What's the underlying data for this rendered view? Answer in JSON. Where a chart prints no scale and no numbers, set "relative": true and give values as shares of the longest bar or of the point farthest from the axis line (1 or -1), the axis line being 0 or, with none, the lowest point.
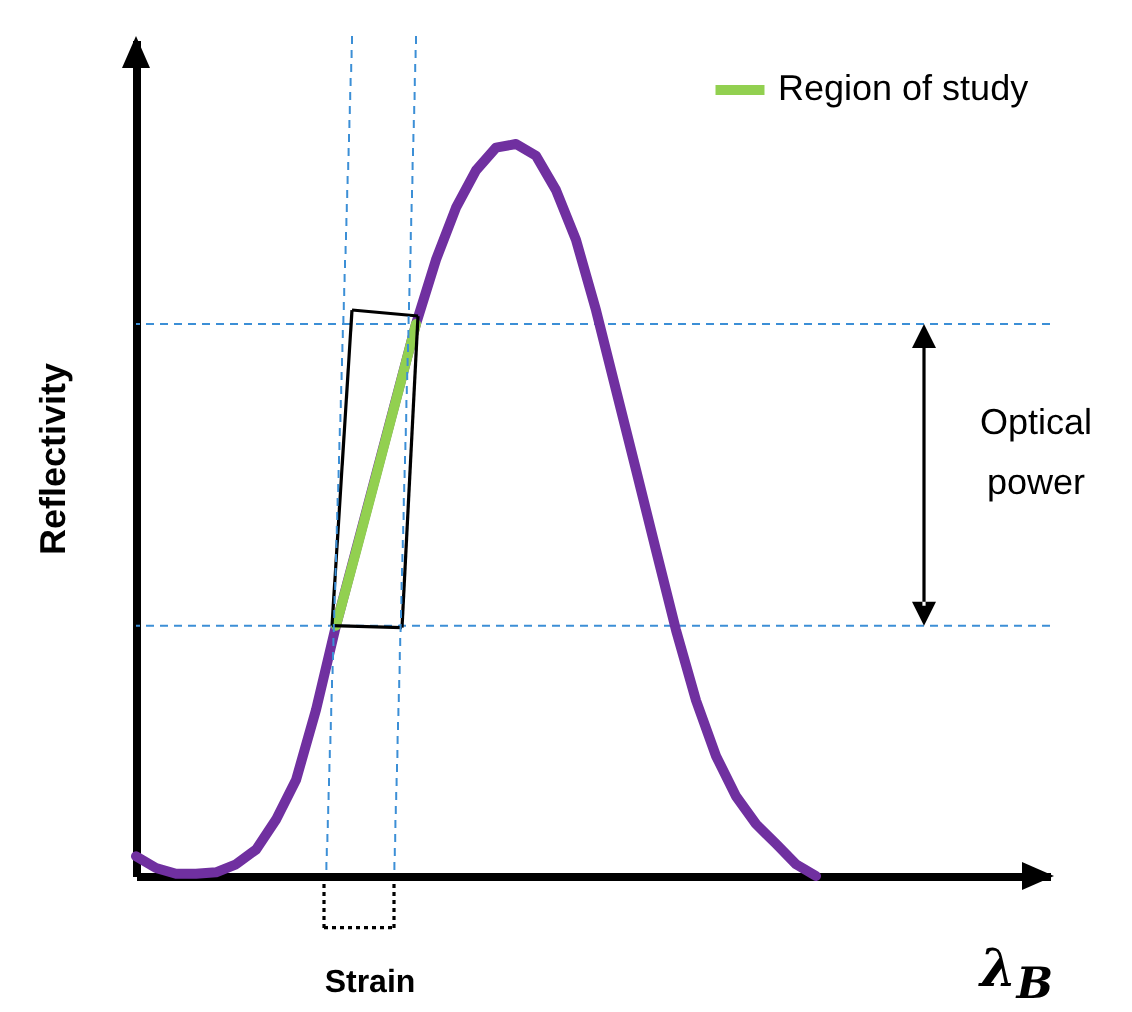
{
  "chart_data": {
    "type": "line",
    "relative": true,
    "xlabel": "λ$_{B}$",
    "ylabel": "Reflectivity",
    "legend": "top right",
    "tick_labels": false,
    "categories": [
      null,
      null,
      null,
      null,
      null,
      null,
      null,
      null,
      null,
      null,
      null,
      null,
      null,
      null,
      null,
      null,
      null,
      null,
      null,
      null,
      null,
      null,
      null,
      null,
      null,
      null,
      null,
      null,
      null,
      null,
      null,
      null,
      null,
      null,
      null
    ],
    "series": [
      {
        "color": "#7030a0",
        "values": [
          0.027,
          0.011,
          0.003,
          0.003,
          0.005,
          0.016,
          0.036,
          0.077,
          0.131,
          0.227,
          0.342,
          null,
          null,
          null,
          0.754,
          0.842,
          0.913,
          0.964,
          0.995,
          1.0,
          0.984,
          0.937,
          0.869,
          0.773,
          0.664,
          0.555,
          0.445,
          0.336,
          0.24,
          0.164,
          0.109,
          0.071,
          0.044,
          0.016,
          0.0
        ]
      },
      {
        "name": "Region of study",
        "color": "#92d050",
        "values": [
          null,
          null,
          null,
          null,
          null,
          null,
          null,
          null,
          null,
          null,
          0.342,
          0.443,
          0.546,
          0.65,
          0.754,
          null,
          null,
          null,
          null,
          null,
          null,
          null,
          null,
          null,
          null,
          null,
          null,
          null,
          null,
          null,
          null,
          null,
          null,
          null,
          null
        ]
      }
    ],
    "ref_lines": [
      {
        "axis": "y",
        "value": 0.754,
        "color": "#3c8fd6",
        "line_style": "dashed"
      },
      {
        "axis": "y",
        "value": 0.342,
        "color": "#3c8fd6",
        "line_style": "dashed"
      }
    ],
    "annotations": [
      "Optical power",
      "Strain"
    ]
  }
}
